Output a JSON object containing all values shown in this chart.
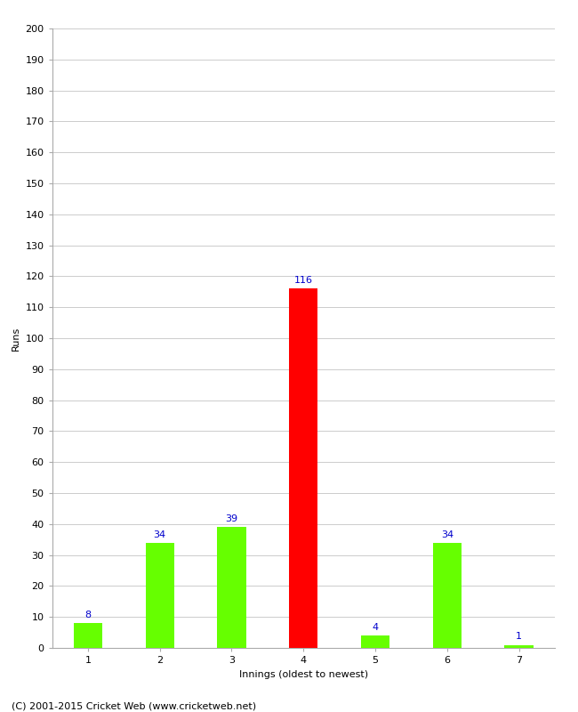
{
  "xlabel": "Innings (oldest to newest)",
  "ylabel": "Runs",
  "categories": [
    "1",
    "2",
    "3",
    "4",
    "5",
    "6",
    "7"
  ],
  "values": [
    8,
    34,
    39,
    116,
    4,
    34,
    1
  ],
  "bar_colors": [
    "#66ff00",
    "#66ff00",
    "#66ff00",
    "#ff0000",
    "#66ff00",
    "#66ff00",
    "#66ff00"
  ],
  "ylim": [
    0,
    200
  ],
  "yticks": [
    0,
    10,
    20,
    30,
    40,
    50,
    60,
    70,
    80,
    90,
    100,
    110,
    120,
    130,
    140,
    150,
    160,
    170,
    180,
    190,
    200
  ],
  "annotation_color": "#0000cc",
  "annotation_fontsize": 8,
  "axis_label_fontsize": 8,
  "tick_fontsize": 8,
  "footer": "(C) 2001-2015 Cricket Web (www.cricketweb.net)",
  "footer_fontsize": 8,
  "background_color": "#ffffff",
  "grid_color": "#cccccc",
  "bar_width": 0.4
}
